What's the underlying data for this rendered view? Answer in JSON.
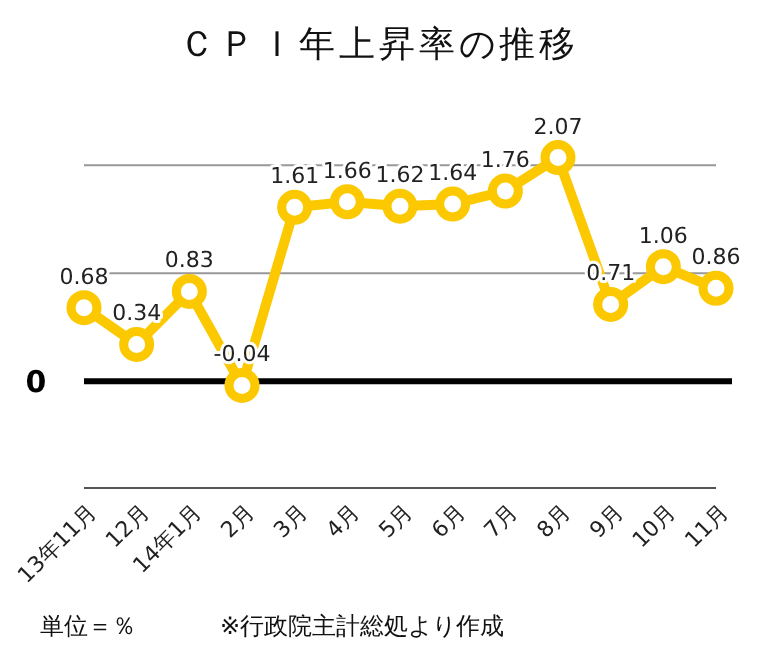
{
  "chart_data": {
    "type": "line",
    "title": "ＣＰＩ年上昇率の推移",
    "categories": [
      "13年11月",
      "12月",
      "14年1月",
      "2月",
      "3月",
      "4月",
      "5月",
      "6月",
      "7月",
      "8月",
      "9月",
      "10月",
      "11月"
    ],
    "series": [
      {
        "color": "#fcc800",
        "values": [
          0.68,
          0.34,
          0.83,
          -0.04,
          1.61,
          1.66,
          1.62,
          1.64,
          1.76,
          2.07,
          0.71,
          1.06,
          0.86
        ]
      }
    ],
    "marker": "circle",
    "data_labels": true,
    "ref_lines": [
      {
        "axis": "y",
        "value": 0,
        "label": "0",
        "color": "#000000"
      },
      {
        "axis": "y",
        "value": 1,
        "color": "#999999"
      },
      {
        "axis": "y",
        "value": 2,
        "color": "#999999"
      }
    ],
    "annotations": [
      "単位＝％",
      "※行政院主計総処より作成"
    ]
  }
}
